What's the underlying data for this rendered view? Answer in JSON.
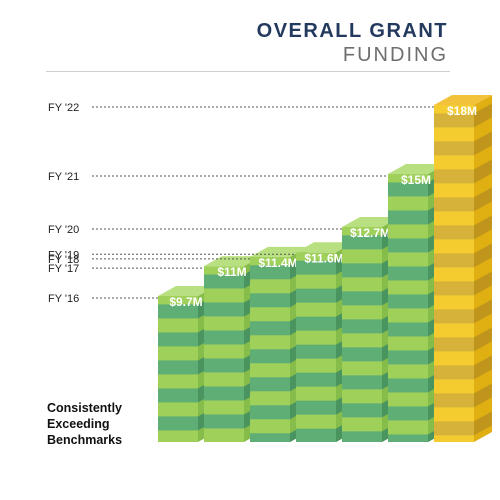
{
  "title": {
    "line1": "OVERALL GRANT",
    "line2": "FUNDING"
  },
  "note": [
    "Consistently",
    "Exceeding",
    "Benchmarks"
  ],
  "colors": {
    "green_top": "#b8e080",
    "green_front_light": "#9fd05a",
    "green_front_dark": "#5fae76",
    "green_side_light": "#86bd4a",
    "green_side_dark": "#4a9460",
    "gold_top": "#f2c23a",
    "gold_front_light": "#f5cc30",
    "gold_front_dark": "#d7b23a",
    "gold_side_light": "#e0b012",
    "gold_side_dark": "#bf951c",
    "leader_line": "#555555"
  },
  "chart_data": {
    "type": "bar",
    "categories": [
      "FY '16",
      "FY '17",
      "FY '18",
      "FY '19",
      "FY '20",
      "FY '21",
      "FY '22"
    ],
    "values": [
      9.7,
      11,
      11.4,
      11.6,
      12.7,
      15,
      18
    ],
    "value_labels": [
      "$9.7M",
      "$11M",
      "$11.4M",
      "$11.6M",
      "$12.7M",
      "$15M",
      "$18M"
    ],
    "highlight_index": 6,
    "title": "OVERALL GRANT FUNDING",
    "xlabel": "",
    "ylabel": "",
    "legend": "none",
    "grid": false
  }
}
